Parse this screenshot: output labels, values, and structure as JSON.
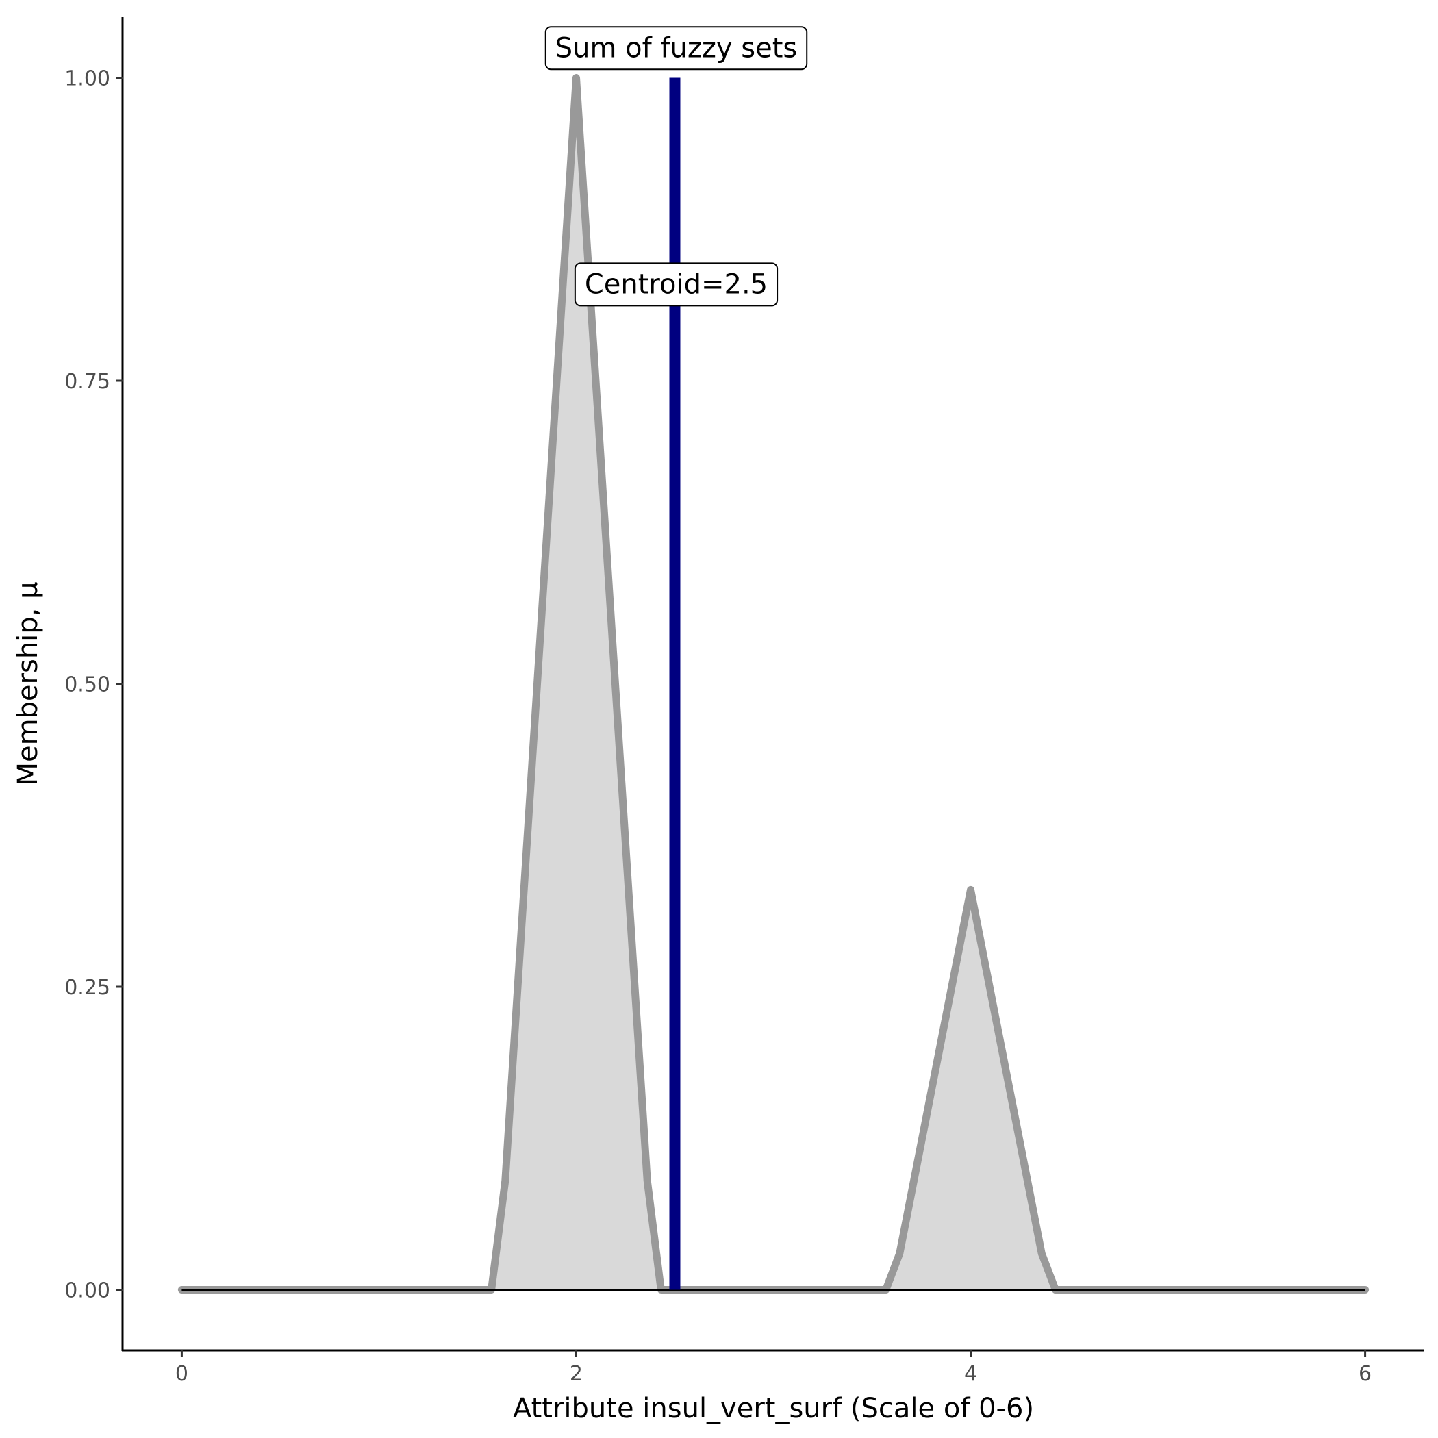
{
  "chart_data": {
    "type": "area",
    "xlabel": "Attribute insul_vert_surf (Scale of 0-6)",
    "ylabel": "Membership, μ",
    "xlim": [
      -0.3,
      6.3
    ],
    "ylim": [
      -0.05,
      1.05
    ],
    "x_ticks": [
      0,
      2,
      4,
      6
    ],
    "y_ticks": [
      0.0,
      0.25,
      0.5,
      0.75,
      1.0
    ],
    "x_tick_labels": [
      "0",
      "2",
      "4",
      "6"
    ],
    "y_tick_labels": [
      "0.00",
      "0.25",
      "0.50",
      "0.75",
      "1.00"
    ],
    "grid": false,
    "series": [
      {
        "x": [
          0,
          1.57,
          1.64,
          2.0,
          2.36,
          2.43,
          3.57,
          3.64,
          4.0,
          4.36,
          4.43,
          6.0
        ],
        "y": [
          0,
          0,
          0.09,
          1.0,
          0.09,
          0,
          0,
          0.03,
          0.33,
          0.03,
          0,
          0
        ],
        "line_color": "#999999",
        "fill_color": "#d9d9d9"
      }
    ],
    "centroid_line": {
      "x": 2.5,
      "y0": 0,
      "y1": 1.0,
      "color": "#000080"
    },
    "baseline": {
      "y": 0,
      "x0": 0,
      "x1": 6,
      "color": "#000000"
    },
    "annotations": [
      {
        "text": "Sum of fuzzy sets",
        "x": 2.5,
        "y": 1.025
      },
      {
        "text": "Centroid=2.5",
        "x": 2.5,
        "y": 0.83
      }
    ]
  }
}
